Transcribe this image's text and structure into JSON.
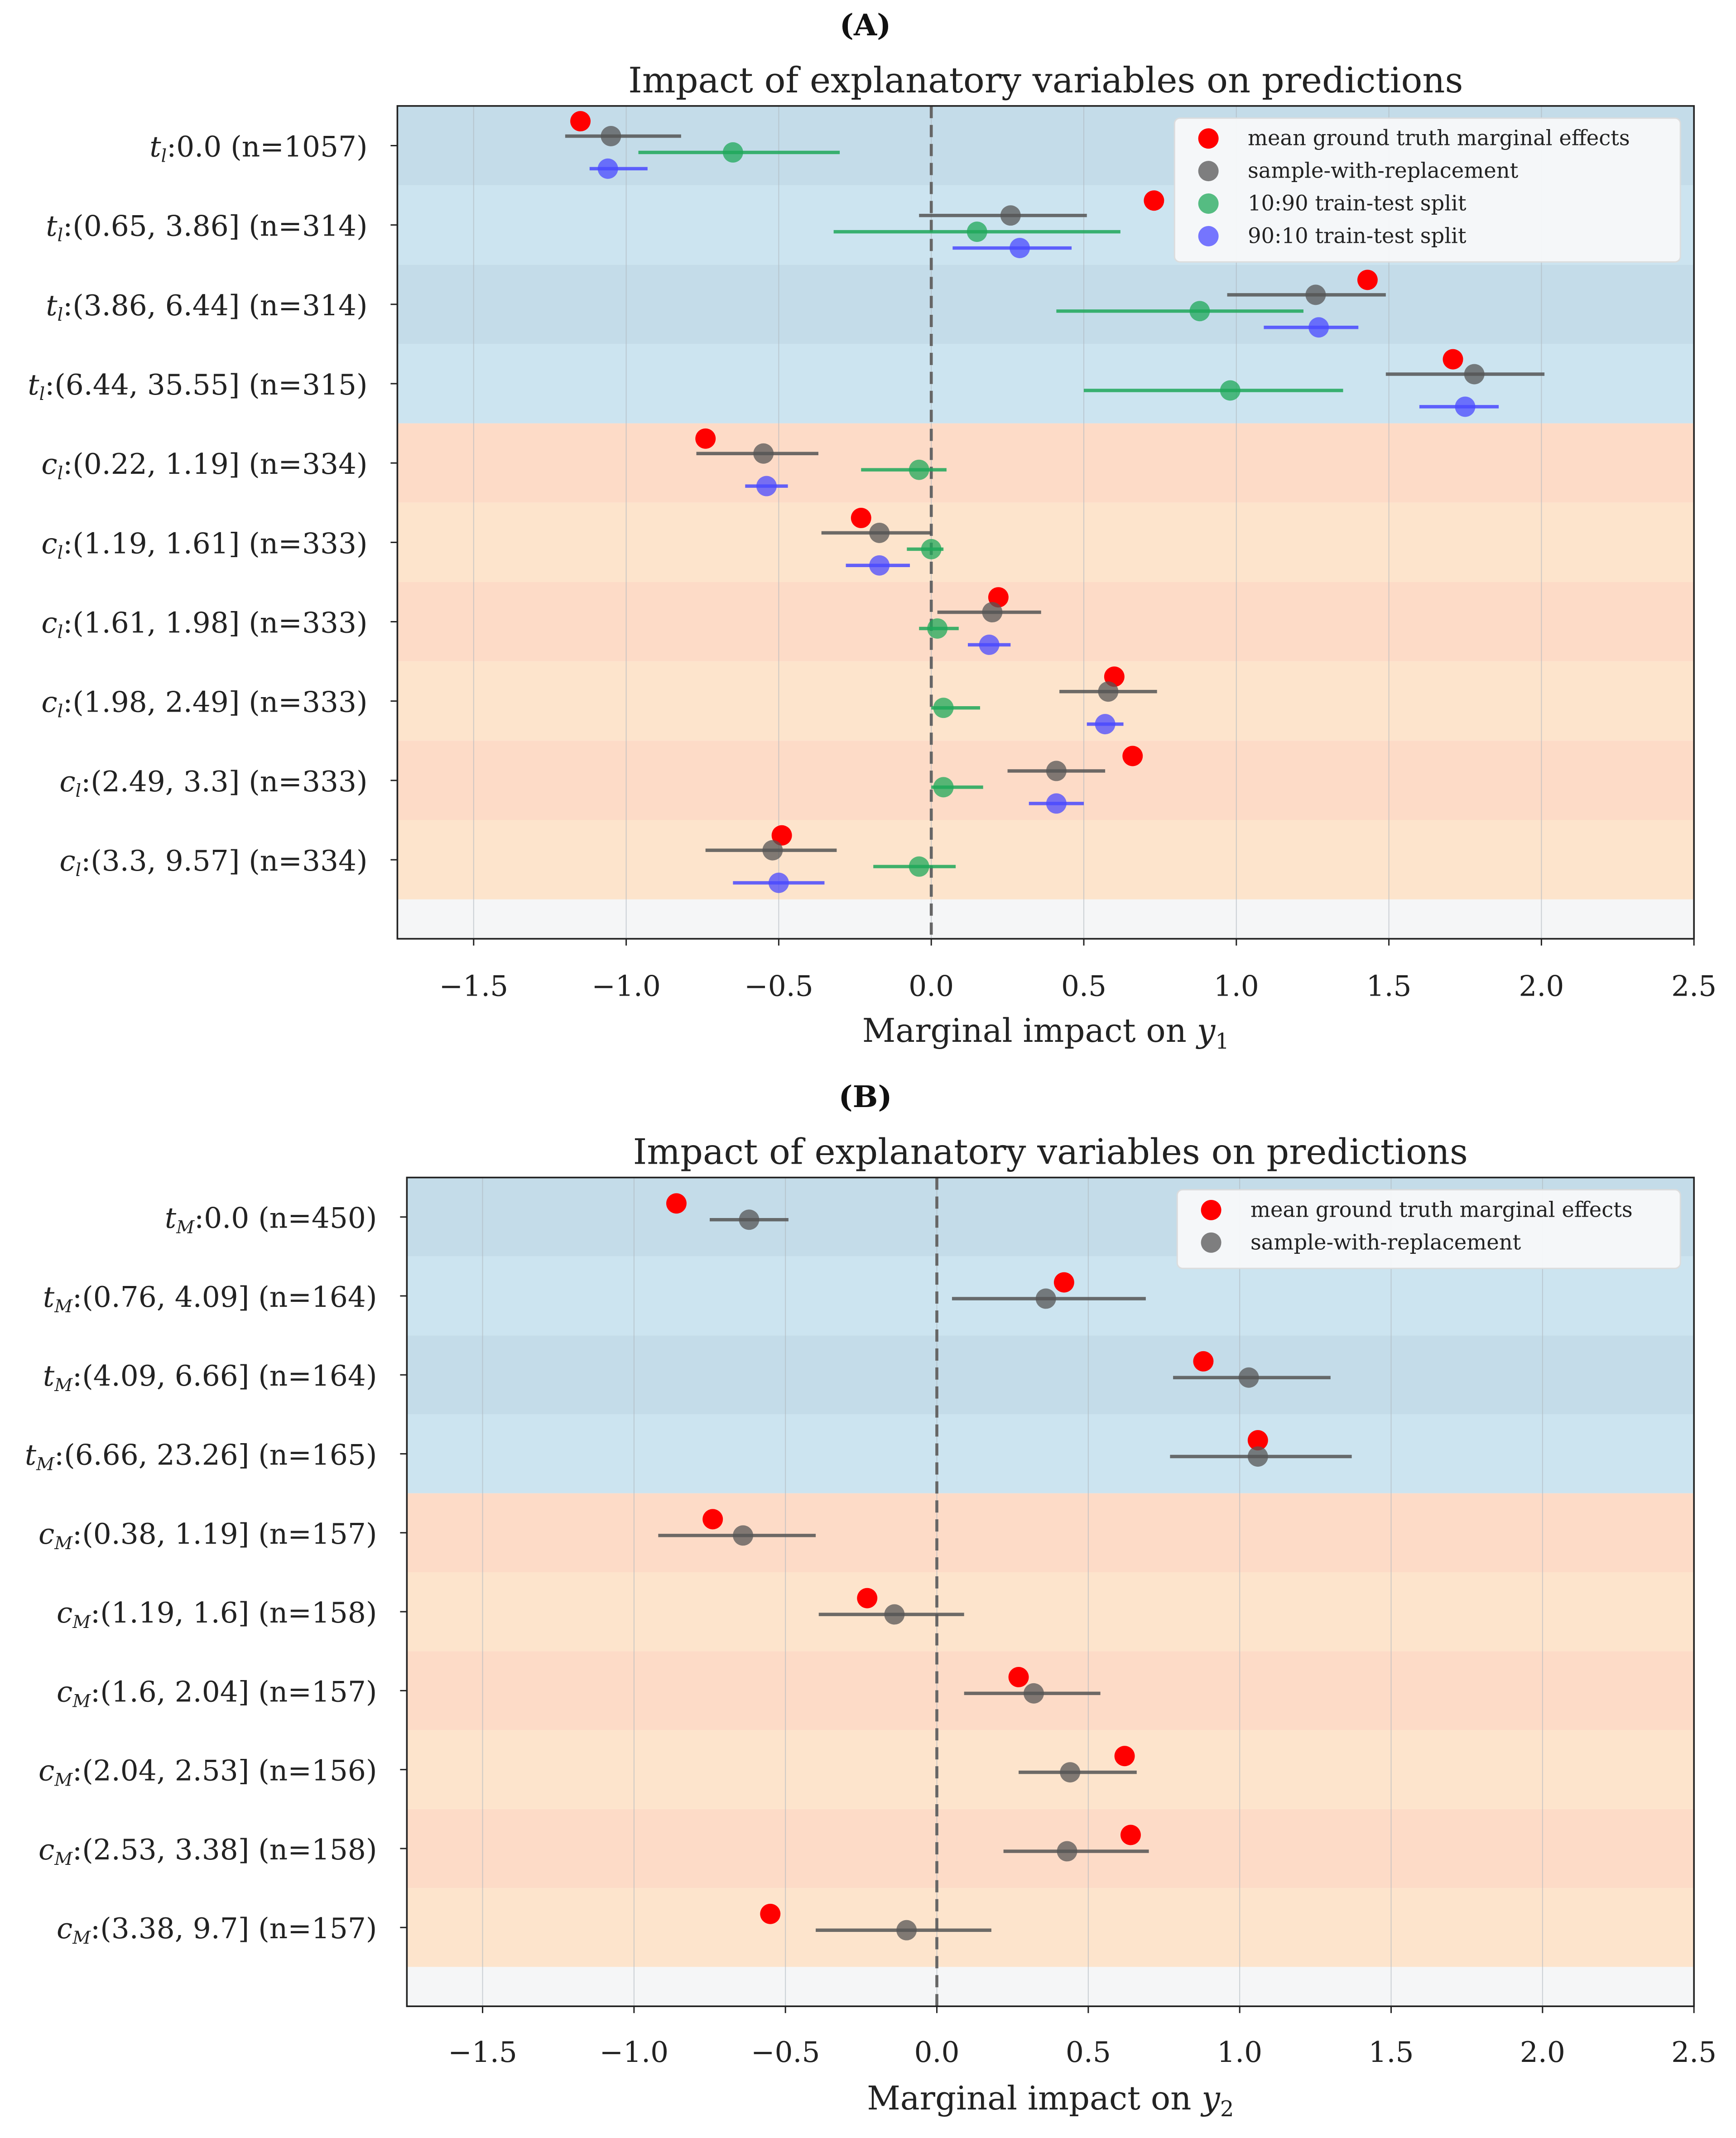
{
  "chart_data": [
    {
      "panel_label": "A",
      "type": "scatter",
      "title": "Impact of explanatory variables on predictions",
      "xlabel": "Marginal impact on y",
      "xlabel_sub": "1",
      "xlim": [
        -1.75,
        2.5
      ],
      "xticks": [
        "−1.5",
        "−1.0",
        "−0.5",
        "0.0",
        "0.5",
        "1.0",
        "1.5",
        "2.0",
        "2.5"
      ],
      "xtick_values": [
        -1.5,
        -1.0,
        -0.5,
        0.0,
        0.5,
        1.0,
        1.5,
        2.0,
        2.5
      ],
      "legend_position": "top-right",
      "categories": [
        {
          "var": "t",
          "sub": "l",
          "text": ":0.0 (n=1057)",
          "group": "t"
        },
        {
          "var": "t",
          "sub": "l",
          "text": ":(0.65, 3.86] (n=314)",
          "group": "t"
        },
        {
          "var": "t",
          "sub": "l",
          "text": ":(3.86, 6.44] (n=314)",
          "group": "t"
        },
        {
          "var": "t",
          "sub": "l",
          "text": ":(6.44, 35.55] (n=315)",
          "group": "t"
        },
        {
          "var": "c",
          "sub": "l",
          "text": ":(0.22, 1.19] (n=334)",
          "group": "c"
        },
        {
          "var": "c",
          "sub": "l",
          "text": ":(1.19, 1.61] (n=333)",
          "group": "c"
        },
        {
          "var": "c",
          "sub": "l",
          "text": ":(1.61, 1.98] (n=333)",
          "group": "c"
        },
        {
          "var": "c",
          "sub": "l",
          "text": ":(1.98, 2.49] (n=333)",
          "group": "c"
        },
        {
          "var": "c",
          "sub": "l",
          "text": ":(2.49, 3.3] (n=333)",
          "group": "c"
        },
        {
          "var": "c",
          "sub": "l",
          "text": ":(3.3, 9.57] (n=334)",
          "group": "c"
        }
      ],
      "series": [
        {
          "name": "mean ground truth marginal effects",
          "color": "#ff0000",
          "values": [
            -1.15,
            0.73,
            1.43,
            1.71,
            -0.74,
            -0.23,
            0.22,
            0.6,
            0.66,
            -0.49
          ]
        },
        {
          "name": "sample-with-replacement",
          "color": "#555555",
          "values": [
            -1.05,
            0.26,
            1.26,
            1.78,
            -0.55,
            -0.17,
            0.2,
            0.58,
            0.41,
            -0.52
          ],
          "err_low": [
            -1.2,
            -0.04,
            0.97,
            1.49,
            -0.77,
            -0.36,
            0.02,
            0.42,
            0.25,
            -0.74
          ],
          "err_high": [
            -0.82,
            0.51,
            1.49,
            2.01,
            -0.37,
            0.0,
            0.36,
            0.74,
            0.57,
            -0.31
          ]
        },
        {
          "name": "10:90 train-test split",
          "color": "#1fa85a",
          "values": [
            -0.65,
            0.15,
            0.88,
            0.98,
            -0.04,
            0.0,
            0.02,
            0.04,
            0.04,
            -0.04
          ],
          "err_low": [
            -0.96,
            -0.32,
            0.41,
            0.5,
            -0.23,
            -0.08,
            -0.04,
            0.0,
            0.0,
            -0.19
          ],
          "err_high": [
            -0.3,
            0.62,
            1.22,
            1.35,
            0.05,
            0.04,
            0.09,
            0.16,
            0.17,
            0.08
          ]
        },
        {
          "name": "90:10 train-test split",
          "color": "#4a4aff",
          "values": [
            -1.06,
            0.29,
            1.27,
            1.75,
            -0.54,
            -0.17,
            0.19,
            0.57,
            0.41,
            -0.5
          ],
          "err_low": [
            -1.12,
            0.07,
            1.09,
            1.6,
            -0.61,
            -0.28,
            0.12,
            0.51,
            0.32,
            -0.65
          ],
          "err_high": [
            -0.93,
            0.46,
            1.4,
            1.86,
            -0.47,
            -0.07,
            0.26,
            0.63,
            0.5,
            -0.35
          ]
        }
      ]
    },
    {
      "panel_label": "B",
      "type": "scatter",
      "title": "Impact of explanatory variables on predictions",
      "xlabel": "Marginal impact on y",
      "xlabel_sub": "2",
      "xlim": [
        -1.75,
        2.5
      ],
      "xticks": [
        "−1.5",
        "−1.0",
        "−0.5",
        "0.0",
        "0.5",
        "1.0",
        "1.5",
        "2.0",
        "2.5"
      ],
      "xtick_values": [
        -1.5,
        -1.0,
        -0.5,
        0.0,
        0.5,
        1.0,
        1.5,
        2.0,
        2.5
      ],
      "legend_position": "top-right",
      "categories": [
        {
          "var": "t",
          "sub": "M",
          "text": ":0.0 (n=450)",
          "group": "t"
        },
        {
          "var": "t",
          "sub": "M",
          "text": ":(0.76, 4.09] (n=164)",
          "group": "t"
        },
        {
          "var": "t",
          "sub": "M",
          "text": ":(4.09, 6.66] (n=164)",
          "group": "t"
        },
        {
          "var": "t",
          "sub": "M",
          "text": ":(6.66, 23.26] (n=165)",
          "group": "t"
        },
        {
          "var": "c",
          "sub": "M",
          "text": ":(0.38, 1.19] (n=157)",
          "group": "c"
        },
        {
          "var": "c",
          "sub": "M",
          "text": ":(1.19, 1.6] (n=158)",
          "group": "c"
        },
        {
          "var": "c",
          "sub": "M",
          "text": ":(1.6, 2.04] (n=157)",
          "group": "c"
        },
        {
          "var": "c",
          "sub": "M",
          "text": ":(2.04, 2.53] (n=156)",
          "group": "c"
        },
        {
          "var": "c",
          "sub": "M",
          "text": ":(2.53, 3.38] (n=158)",
          "group": "c"
        },
        {
          "var": "c",
          "sub": "M",
          "text": ":(3.38, 9.7] (n=157)",
          "group": "c"
        }
      ],
      "series": [
        {
          "name": "mean ground truth marginal effects",
          "color": "#ff0000",
          "values": [
            -0.86,
            0.42,
            0.88,
            1.06,
            -0.74,
            -0.23,
            0.27,
            0.62,
            0.64,
            -0.55
          ]
        },
        {
          "name": "sample-with-replacement",
          "color": "#555555",
          "values": [
            -0.62,
            0.36,
            1.03,
            1.06,
            -0.64,
            -0.14,
            0.32,
            0.44,
            0.43,
            -0.1
          ],
          "err_low": [
            -0.75,
            0.05,
            0.78,
            0.77,
            -0.92,
            -0.39,
            0.09,
            0.27,
            0.22,
            -0.4
          ],
          "err_high": [
            -0.49,
            0.69,
            1.3,
            1.37,
            -0.4,
            0.09,
            0.54,
            0.66,
            0.7,
            0.18
          ]
        }
      ]
    }
  ]
}
